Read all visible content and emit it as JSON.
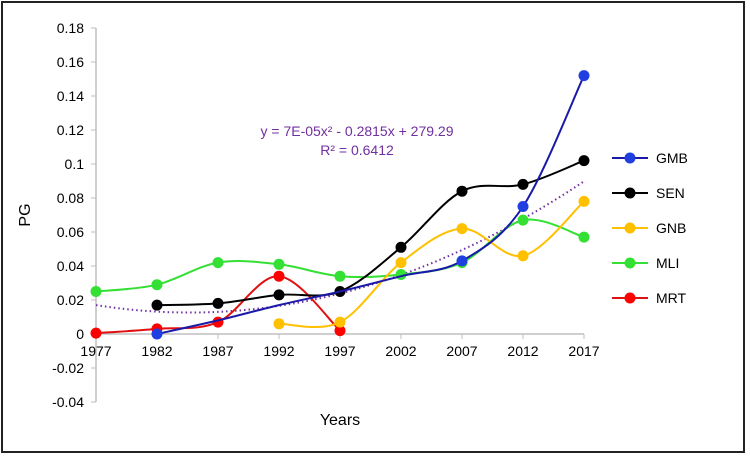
{
  "chart_data": {
    "type": "line",
    "title": "",
    "xlabel": "Years",
    "ylabel": "PG",
    "x": [
      1977,
      1982,
      1987,
      1992,
      1997,
      2002,
      2007,
      2012,
      2017
    ],
    "xticks": [
      "1977",
      "1982",
      "1987",
      "1992",
      "1997",
      "2002",
      "2007",
      "2012",
      "2017"
    ],
    "yticks": [
      "-0.04",
      "-0.02",
      "0",
      "0.02",
      "0.04",
      "0.06",
      "0.08",
      "0.1",
      "0.12",
      "0.14",
      "0.16",
      "0.18"
    ],
    "ylim": [
      -0.04,
      0.18
    ],
    "grid": false,
    "legend_position": "right",
    "series": [
      {
        "name": "GMB",
        "color": "#1f3fe0",
        "line": "#1a1aa8",
        "values": [
          null,
          0.0,
          null,
          null,
          null,
          null,
          0.043,
          0.075,
          0.152
        ],
        "curve": [
          null,
          0.0,
          0.008,
          0.017,
          0.025,
          0.034,
          0.043,
          0.075,
          0.152
        ]
      },
      {
        "name": "SEN",
        "color": "#000000",
        "line": "#000000",
        "values": [
          null,
          0.017,
          0.018,
          0.023,
          0.025,
          0.051,
          0.084,
          0.088,
          0.102
        ]
      },
      {
        "name": "GNB",
        "color": "#ffc000",
        "line": "#ffc000",
        "values": [
          null,
          null,
          null,
          0.006,
          0.007,
          0.042,
          0.062,
          0.046,
          0.078
        ]
      },
      {
        "name": "MLI",
        "color": "#33e033",
        "line": "#33e033",
        "values": [
          0.025,
          0.029,
          0.042,
          0.041,
          0.034,
          0.035,
          0.042,
          0.067,
          0.057
        ]
      },
      {
        "name": "MRT",
        "color": "#ff0000",
        "line": "#e01010",
        "values": [
          0.0005,
          0.003,
          0.007,
          0.034,
          0.002,
          null,
          null,
          null,
          null
        ]
      }
    ],
    "trendline": {
      "type": "polynomial-2",
      "color": "#7030a0",
      "equation": "y = 7E-05x² - 0.2815x + 279.29",
      "r_squared": "R² = 0.6412"
    }
  }
}
